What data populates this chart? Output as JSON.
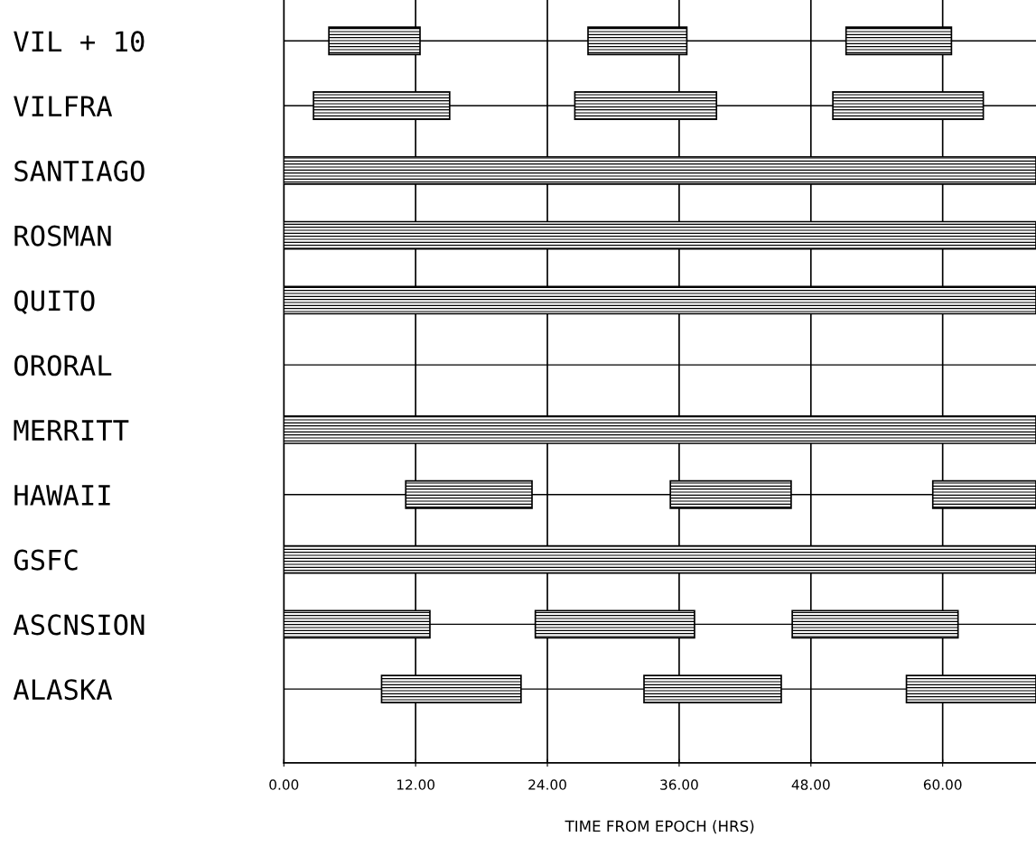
{
  "chart_data": {
    "type": "bar",
    "orientation": "horizontal",
    "xlabel": "TIME FROM EPOCH (HRS)",
    "categories": [
      "VIL + 10",
      "VILFRA",
      "SANTIAGO",
      "ROSMAN",
      "QUITO",
      "ORORAL",
      "MERRITT",
      "HAWAII",
      "GSFC",
      "ASCNSION",
      "ALASKA"
    ],
    "series": [
      {
        "color": "#000000",
        "base": [
          4.1,
          2.7,
          0,
          0,
          0,
          null,
          0,
          11.1,
          0,
          0,
          8.9
        ],
        "values": [
          8.3,
          12.4,
          68.5,
          68.5,
          68.5,
          null,
          68.5,
          11.5,
          68.5,
          13.3,
          12.7
        ]
      },
      {
        "color": "#000000",
        "base": [
          27.7,
          26.5,
          null,
          null,
          null,
          null,
          null,
          35.2,
          null,
          22.9,
          32.8
        ],
        "values": [
          9.0,
          12.9,
          null,
          null,
          null,
          null,
          null,
          11.0,
          null,
          14.5,
          12.5
        ]
      },
      {
        "color": "#000000",
        "base": [
          51.2,
          50.0,
          null,
          null,
          null,
          null,
          null,
          59.1,
          null,
          46.3,
          56.7
        ],
        "values": [
          9.6,
          13.7,
          null,
          null,
          null,
          null,
          null,
          9.4,
          null,
          15.1,
          11.8
        ]
      }
    ],
    "xlim": [
      0,
      68.5
    ],
    "xticks": [
      {
        "value": 0,
        "label": "0.00"
      },
      {
        "value": 12,
        "label": "12.00"
      },
      {
        "value": 24,
        "label": "24.00"
      },
      {
        "value": 36,
        "label": "36.00"
      },
      {
        "value": 48,
        "label": "48.00"
      },
      {
        "value": 60,
        "label": "60.00"
      }
    ],
    "grid": true
  }
}
